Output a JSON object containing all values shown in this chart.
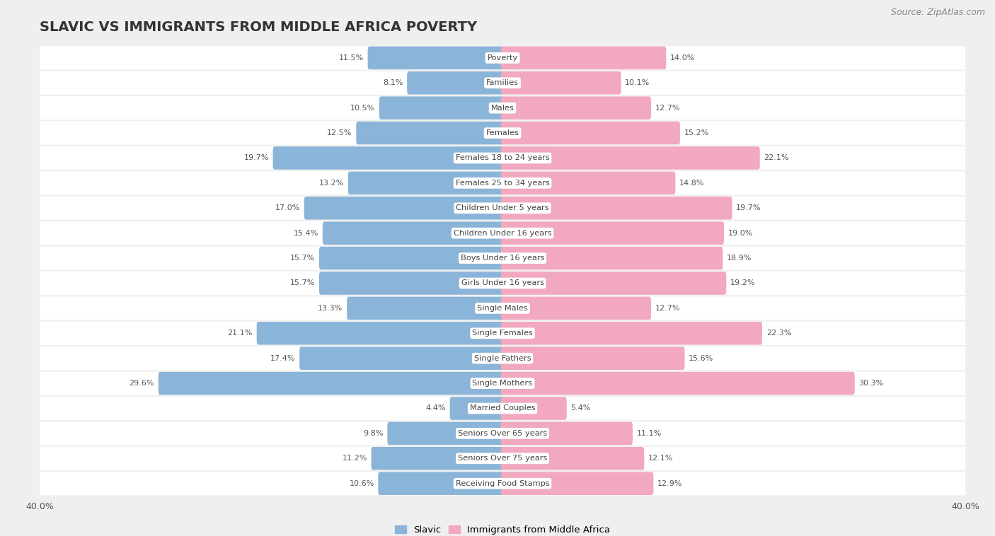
{
  "title": "SLAVIC VS IMMIGRANTS FROM MIDDLE AFRICA POVERTY",
  "source": "Source: ZipAtlas.com",
  "categories": [
    "Poverty",
    "Families",
    "Males",
    "Females",
    "Females 18 to 24 years",
    "Females 25 to 34 years",
    "Children Under 5 years",
    "Children Under 16 years",
    "Boys Under 16 years",
    "Girls Under 16 years",
    "Single Males",
    "Single Females",
    "Single Fathers",
    "Single Mothers",
    "Married Couples",
    "Seniors Over 65 years",
    "Seniors Over 75 years",
    "Receiving Food Stamps"
  ],
  "slavic_values": [
    11.5,
    8.1,
    10.5,
    12.5,
    19.7,
    13.2,
    17.0,
    15.4,
    15.7,
    15.7,
    13.3,
    21.1,
    17.4,
    29.6,
    4.4,
    9.8,
    11.2,
    10.6
  ],
  "immigrant_values": [
    14.0,
    10.1,
    12.7,
    15.2,
    22.1,
    14.8,
    19.7,
    19.0,
    18.9,
    19.2,
    12.7,
    22.3,
    15.6,
    30.3,
    5.4,
    11.1,
    12.1,
    12.9
  ],
  "slavic_color": "#8ab4d8",
  "immigrant_color": "#f2a8bf",
  "background_color": "#efefef",
  "row_color": "#ffffff",
  "xlim": 40.0,
  "legend_slavic": "Slavic",
  "legend_immigrant": "Immigrants from Middle Africa",
  "title_fontsize": 14,
  "source_fontsize": 9,
  "label_fontsize": 8.2,
  "value_fontsize": 8.0
}
